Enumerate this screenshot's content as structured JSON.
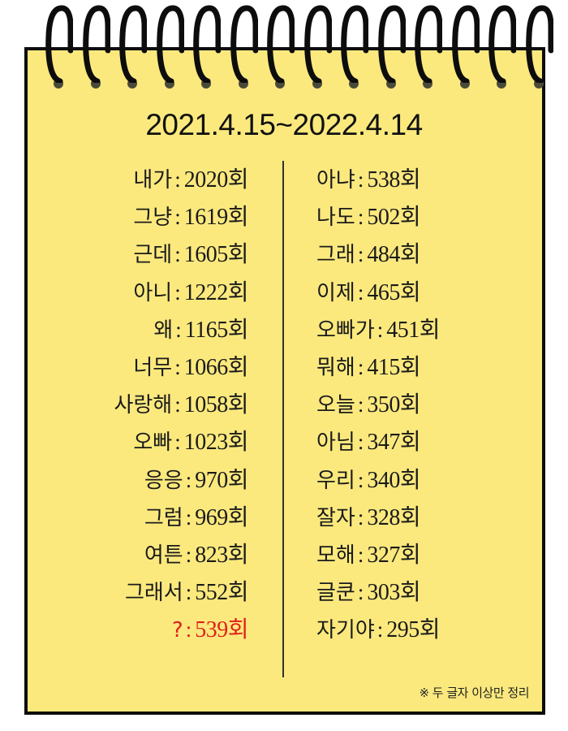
{
  "title": "2021.4.15~2022.4.14",
  "left_list": [
    {
      "word": "내가",
      "count": "2020회"
    },
    {
      "word": "그냥",
      "count": "1619회"
    },
    {
      "word": "근데",
      "count": "1605회"
    },
    {
      "word": "아니",
      "count": "1222회"
    },
    {
      "word": "왜",
      "count": "1165회"
    },
    {
      "word": "너무",
      "count": "1066회"
    },
    {
      "word": "사랑해",
      "count": "1058회"
    },
    {
      "word": "오빠",
      "count": "1023회"
    },
    {
      "word": "응응",
      "count": "970회"
    },
    {
      "word": "그럼",
      "count": "969회"
    },
    {
      "word": "여튼",
      "count": "823회"
    },
    {
      "word": "그래서",
      "count": "552회"
    },
    {
      "word": "?",
      "count": "539회",
      "highlight": "#e0201b"
    }
  ],
  "right_list": [
    {
      "word": "아냐",
      "count": "538회"
    },
    {
      "word": "나도",
      "count": "502회"
    },
    {
      "word": "그래",
      "count": "484회"
    },
    {
      "word": "이제",
      "count": "465회"
    },
    {
      "word": "오빠가",
      "count": "451회"
    },
    {
      "word": "뭐해",
      "count": "415회"
    },
    {
      "word": "오늘",
      "count": "350회"
    },
    {
      "word": "아님",
      "count": "347회"
    },
    {
      "word": "우리",
      "count": "340회"
    },
    {
      "word": "잘자",
      "count": "328회"
    },
    {
      "word": "모해",
      "count": "327회"
    },
    {
      "word": "글쿤",
      "count": "303회"
    },
    {
      "word": "자기야",
      "count": "295회"
    }
  ],
  "separator": ":",
  "footnote": "※ 두 글자 이상만 정리",
  "colors": {
    "paper": "#fbe97e",
    "border": "#0d0d0d",
    "highlight": "#e0201b"
  },
  "icons": [
    "spiral-binding-icon"
  ]
}
